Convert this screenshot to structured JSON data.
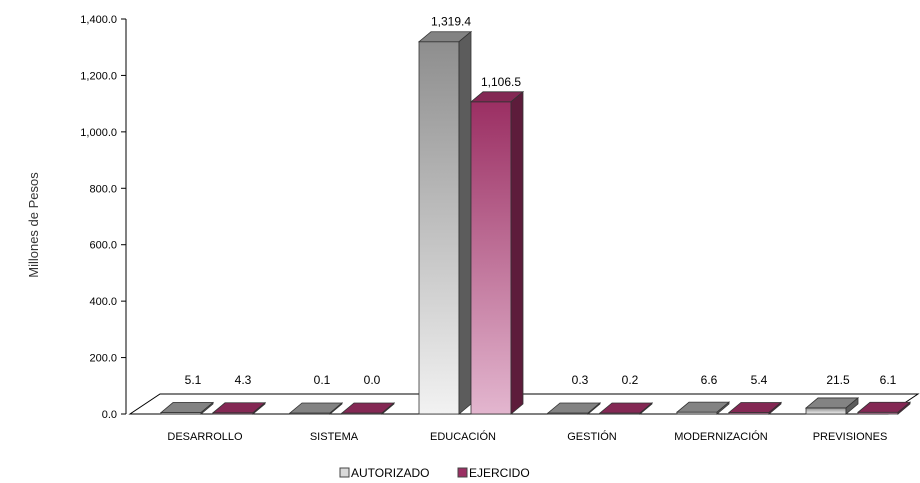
{
  "chart_data": {
    "type": "bar",
    "title": "",
    "xlabel": "",
    "ylabel": "Millones de Pesos",
    "ylim": [
      0,
      1400
    ],
    "yticks": [
      "0.0",
      "200.0",
      "400.0",
      "600.0",
      "800.0",
      "1,000.0",
      "1,200.0",
      "1,400.0"
    ],
    "grid": false,
    "legend_position": "bottom",
    "categories": [
      "DESARROLLO",
      "SISTEMA",
      "EDUCACIÓN",
      "GESTIÓN",
      "MODERNIZACIÓN",
      "PREVISIONES"
    ],
    "series": [
      {
        "name": "AUTORIZADO",
        "color": "#9a9a9a",
        "values": [
          5.1,
          0.1,
          1319.4,
          0.3,
          6.6,
          21.5
        ],
        "labels": [
          "5.1",
          "0.1",
          "1,319.4",
          "0.3",
          "6.6",
          "21.5"
        ]
      },
      {
        "name": "EJERCIDO",
        "color": "#9b2f63",
        "values": [
          4.3,
          0.0,
          1106.5,
          0.2,
          5.4,
          6.1
        ],
        "labels": [
          "4.3",
          "0.0",
          "1,106.5",
          "0.2",
          "5.4",
          "6.1"
        ]
      }
    ]
  }
}
